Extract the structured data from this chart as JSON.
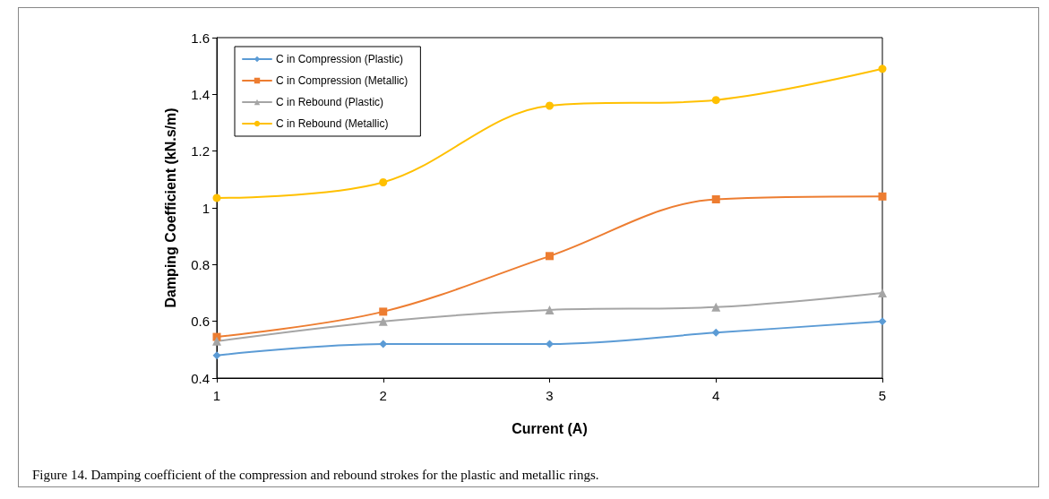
{
  "chart_data": {
    "type": "line",
    "xlabel": "Current (A)",
    "ylabel": "Damping Coefficient (kN.s/m)",
    "x": [
      1,
      2,
      3,
      4,
      5
    ],
    "xlim": [
      1,
      5
    ],
    "xticks": [
      1,
      2,
      3,
      4,
      5
    ],
    "ylim": [
      0.4,
      1.6
    ],
    "yticks": [
      0.4,
      0.6,
      0.8,
      1,
      1.2,
      1.4,
      1.6
    ],
    "grid": false,
    "legend": "top left",
    "line_style": "solid",
    "series": [
      {
        "name": "C in Compression (Plastic)",
        "color": "#5b9bd5",
        "marker": "diamond",
        "values": [
          0.48,
          0.52,
          0.52,
          0.56,
          0.6
        ]
      },
      {
        "name": "C in Compression (Metallic)",
        "color": "#ed7d31",
        "marker": "square",
        "values": [
          0.545,
          0.634,
          0.83,
          1.03,
          1.04
        ]
      },
      {
        "name": "C in Rebound (Plastic)",
        "color": "#a5a5a5",
        "marker": "triangle",
        "values": [
          0.53,
          0.6,
          0.64,
          0.65,
          0.7
        ]
      },
      {
        "name": "C in Rebound (Metallic)",
        "color": "#ffc000",
        "marker": "circle",
        "values": [
          1.035,
          1.09,
          1.36,
          1.38,
          1.49
        ]
      }
    ],
    "annotations": [
      "Figure 14. Damping coefficient of the compression and rebound strokes for the plastic and metallic rings."
    ]
  }
}
